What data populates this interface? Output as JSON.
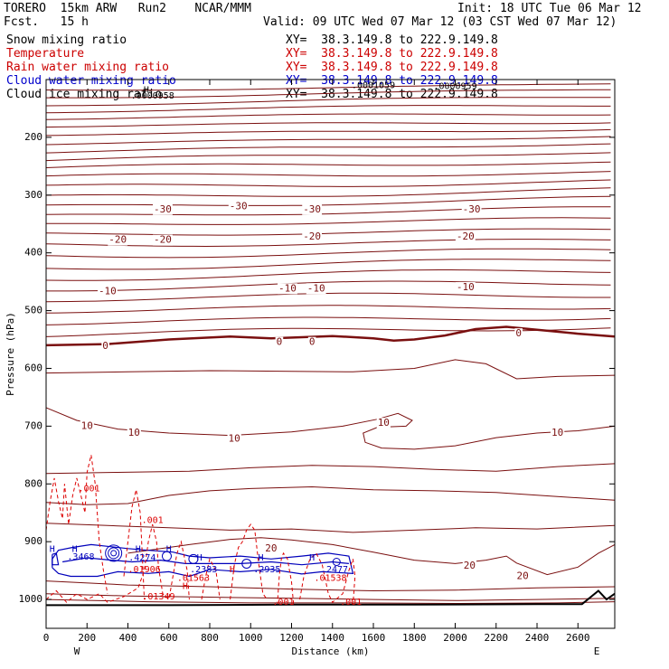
{
  "header": {
    "model": "TORERO  15km ARW   Run2    NCAR/MMM",
    "init": "Init: 18 UTC Tue 06 Mar 12",
    "fcst": "Fcst.   15 h",
    "valid": "Valid: 09 UTC Wed 07 Mar 12 (03 CST Wed 07 Mar 12)"
  },
  "fields": [
    {
      "name": "Snow mixing ratio",
      "xy": "XY=  38.3.149.8 to 222.9.149.8",
      "color": "#000000"
    },
    {
      "name": "Temperature",
      "xy": "XY=  38.3.149.8 to 222.9.149.8",
      "color": "#cc0000"
    },
    {
      "name": "Rain water mixing ratio",
      "xy": "XY=  38.3.149.8 to 222.9.149.8",
      "color": "#cc0000"
    },
    {
      "name": "Cloud water mixing ratio",
      "xy": "XY=  38.3.149.8 to 222.9.149.8",
      "color": "#0000cc"
    },
    {
      "name": "Cloud ice mixing ratio",
      "xy": "XY=  38.3.149.8 to 222.9.149.8",
      "color": "#000000"
    }
  ],
  "colors": {
    "temperature": "#7a0f0f",
    "rain": "#dd0000",
    "cloud": "#0000bb",
    "terrain": "#000000"
  },
  "chart_data": {
    "type": "cross-section",
    "xlabel": "Distance (km)",
    "ylabel": "Pressure (hPa)",
    "xlim": [
      0,
      2780
    ],
    "ylim": [
      100,
      1050
    ],
    "x_ticks": [
      0,
      200,
      400,
      600,
      800,
      1000,
      1200,
      1400,
      1600,
      1800,
      2000,
      2200,
      2400,
      2600
    ],
    "y_ticks": [
      200,
      300,
      400,
      500,
      600,
      700,
      800,
      900,
      1000
    ],
    "left_end": "W",
    "right_end": "E",
    "temperature_contour_labels": [
      {
        "x": 570,
        "p": 325,
        "text": "-30"
      },
      {
        "x": 940,
        "p": 320,
        "text": "-30"
      },
      {
        "x": 1300,
        "p": 325,
        "text": "-30"
      },
      {
        "x": 2080,
        "p": 325,
        "text": "-30"
      },
      {
        "x": 350,
        "p": 378,
        "text": "-20"
      },
      {
        "x": 570,
        "p": 378,
        "text": "-20"
      },
      {
        "x": 1300,
        "p": 372,
        "text": "-20"
      },
      {
        "x": 2050,
        "p": 372,
        "text": "-20"
      },
      {
        "x": 300,
        "p": 467,
        "text": "-10"
      },
      {
        "x": 1180,
        "p": 462,
        "text": "-10"
      },
      {
        "x": 1320,
        "p": 462,
        "text": "-10"
      },
      {
        "x": 2050,
        "p": 460,
        "text": "-10"
      },
      {
        "x": 290,
        "p": 562,
        "text": "0"
      },
      {
        "x": 1140,
        "p": 555,
        "text": "0"
      },
      {
        "x": 1300,
        "p": 555,
        "text": "0"
      },
      {
        "x": 2310,
        "p": 540,
        "text": "0"
      },
      {
        "x": 200,
        "p": 700,
        "text": "10"
      },
      {
        "x": 430,
        "p": 712,
        "text": "10"
      },
      {
        "x": 920,
        "p": 722,
        "text": "10"
      },
      {
        "x": 1650,
        "p": 695,
        "text": "10"
      },
      {
        "x": 2500,
        "p": 712,
        "text": "10"
      },
      {
        "x": 1100,
        "p": 912,
        "text": "20"
      },
      {
        "x": 2070,
        "p": 942,
        "text": "20"
      },
      {
        "x": 2330,
        "p": 960,
        "text": "20"
      }
    ],
    "rain_labels": [
      {
        "x": 210,
        "p": 808,
        "text": ".001"
      },
      {
        "x": 520,
        "p": 863,
        "text": ".001"
      },
      {
        "x": 1160,
        "p": 1005,
        "text": ".001"
      },
      {
        "x": 1490,
        "p": 1005,
        "text": ".001"
      },
      {
        "x": 720,
        "p": 963,
        "text": ".01563"
      },
      {
        "x": 1390,
        "p": 963,
        "text": ".01538"
      },
      {
        "x": 550,
        "p": 995,
        "text": ".01349"
      },
      {
        "x": 480,
        "p": 948,
        "text": ".01906"
      }
    ],
    "cloud_labels": [
      {
        "x": 170,
        "p": 926,
        "text": ".3468"
      },
      {
        "x": 470,
        "p": 928,
        "text": ".4274"
      },
      {
        "x": 770,
        "p": 948,
        "text": ".2383"
      },
      {
        "x": 1080,
        "p": 948,
        "text": ".2935"
      },
      {
        "x": 1410,
        "p": 948,
        "text": ".2477"
      }
    ],
    "cloud_H_markers": [
      {
        "x": 30,
        "p": 913
      },
      {
        "x": 140,
        "p": 913
      },
      {
        "x": 450,
        "p": 913
      },
      {
        "x": 600,
        "p": 913
      },
      {
        "x": 750,
        "p": 928
      },
      {
        "x": 1050,
        "p": 928
      },
      {
        "x": 1300,
        "p": 928
      }
    ],
    "red_H_markers": [
      {
        "x": 910,
        "p": 948
      },
      {
        "x": 680,
        "p": 977
      }
    ],
    "ice_labels": [
      {
        "x": 520,
        "p": 128,
        "text": ".0000958"
      },
      {
        "x": 1600,
        "p": 110,
        "text": ".0001059"
      },
      {
        "x": 2000,
        "p": 112,
        "text": ".0000959"
      }
    ],
    "ice_H_markers": [
      {
        "x": 490,
        "p": 118
      }
    ]
  }
}
